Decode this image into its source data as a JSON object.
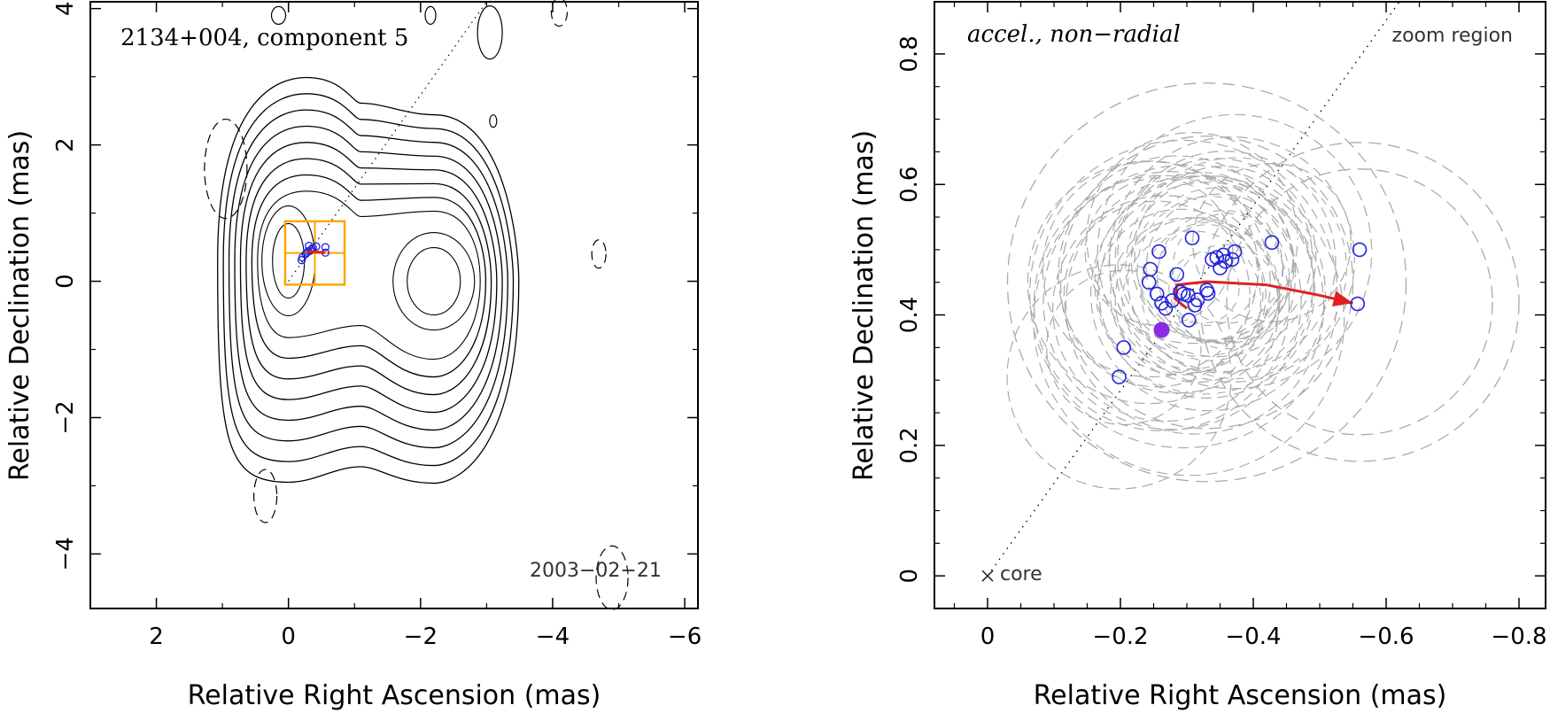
{
  "chart_data": [
    {
      "type": "scatter",
      "name": "left-panel",
      "title": "2134+004, component 5",
      "date_label": "2003−02−21",
      "xlabel": "Relative Right Ascension (mas)",
      "ylabel": "Relative Declination (mas)",
      "xlim": [
        3,
        -6.2
      ],
      "ylim": [
        -4.8,
        4.1
      ],
      "xticks": [
        2,
        0,
        -2,
        -4,
        -6
      ],
      "xtick_labels": [
        "2",
        "0",
        "−2",
        "−4",
        "−6"
      ],
      "yticks": [
        -4,
        -2,
        0,
        2,
        4
      ],
      "ytick_labels": [
        "−4",
        "−2",
        "0",
        "2",
        "4"
      ],
      "jet_direction_line": [
        [
          0,
          0
        ],
        [
          -3,
          4.1
        ]
      ],
      "contour_levels": 10,
      "contours": {
        "core": {
          "cx": 0,
          "cy": 0.3,
          "rx": 0.35,
          "ry": 0.75
        },
        "lobe": {
          "cx": -2.2,
          "cy": 0,
          "rx": 0.55,
          "ry": 0.75
        }
      },
      "zoom_box": {
        "x0": 0.05,
        "x1": -0.85,
        "y0": -0.05,
        "y1": 0.88
      },
      "component_points": [
        [
          -0.2,
          0.31
        ],
        [
          -0.21,
          0.35
        ],
        [
          -0.26,
          0.4
        ],
        [
          -0.28,
          0.42
        ],
        [
          -0.3,
          0.44
        ],
        [
          -0.33,
          0.45
        ],
        [
          -0.35,
          0.47
        ],
        [
          -0.37,
          0.49
        ],
        [
          -0.42,
          0.51
        ],
        [
          -0.56,
          0.5
        ],
        [
          -0.56,
          0.42
        ],
        [
          -0.31,
          0.52
        ]
      ],
      "trajectory": {
        "from": [
          -0.28,
          0.44
        ],
        "to": [
          -0.55,
          0.42
        ]
      }
    },
    {
      "type": "scatter",
      "name": "right-panel",
      "title": "accel., non−radial",
      "zoom_label": "zoom region",
      "core_label": "core",
      "xlabel": "Relative Right Ascension (mas)",
      "ylabel": "Relative Declination (mas)",
      "xlim": [
        0.08,
        -0.84
      ],
      "ylim": [
        -0.05,
        0.88
      ],
      "xticks": [
        0,
        -0.2,
        -0.4,
        -0.6,
        -0.8
      ],
      "xtick_labels": [
        "0",
        "−0.2",
        "−0.4",
        "−0.6",
        "−0.8"
      ],
      "yticks": [
        0,
        0.2,
        0.4,
        0.6,
        0.8
      ],
      "ytick_labels": [
        "0",
        "0.2",
        "0.4",
        "0.6",
        "0.8"
      ],
      "series": [
        {
          "name": "component positions",
          "marker": "open-circle",
          "color": "#2222dd",
          "points": [
            [
              -0.198,
              0.305
            ],
            [
              -0.205,
              0.35
            ],
            [
              -0.245,
              0.47
            ],
            [
              -0.258,
              0.497
            ],
            [
              -0.243,
              0.45
            ],
            [
              -0.255,
              0.432
            ],
            [
              -0.262,
              0.418
            ],
            [
              -0.268,
              0.41
            ],
            [
              -0.278,
              0.422
            ],
            [
              -0.285,
              0.462
            ],
            [
              -0.29,
              0.435
            ],
            [
              -0.295,
              0.432
            ],
            [
              -0.302,
              0.43
            ],
            [
              -0.303,
              0.392
            ],
            [
              -0.308,
              0.518
            ],
            [
              -0.312,
              0.415
            ],
            [
              -0.316,
              0.423
            ],
            [
              -0.33,
              0.438
            ],
            [
              -0.332,
              0.433
            ],
            [
              -0.338,
              0.485
            ],
            [
              -0.345,
              0.488
            ],
            [
              -0.35,
              0.472
            ],
            [
              -0.355,
              0.492
            ],
            [
              -0.358,
              0.482
            ],
            [
              -0.368,
              0.485
            ],
            [
              -0.372,
              0.497
            ],
            [
              -0.428,
              0.511
            ],
            [
              -0.56,
              0.5
            ],
            [
              -0.557,
              0.417
            ]
          ]
        },
        {
          "name": "reference epoch",
          "marker": "filled-circle",
          "color": "#8a2be2",
          "points": [
            [
              -0.262,
              0.377
            ]
          ]
        }
      ],
      "uncertainty_circles": {
        "color": "#aaaaaa",
        "examples": [
          {
            "cx": -0.33,
            "cy": 0.45,
            "r": 0.22
          },
          {
            "cx": -0.33,
            "cy": 0.45,
            "r": 0.3
          },
          {
            "cx": -0.56,
            "cy": 0.42,
            "r": 0.2
          },
          {
            "cx": -0.56,
            "cy": 0.42,
            "r": 0.24
          }
        ]
      },
      "trajectory": {
        "color": "#e02020",
        "path": [
          [
            -0.3,
            0.41
          ],
          [
            -0.282,
            0.425
          ],
          [
            -0.285,
            0.446
          ],
          [
            -0.33,
            0.451
          ],
          [
            -0.42,
            0.446
          ],
          [
            -0.5,
            0.43
          ],
          [
            -0.55,
            0.418
          ]
        ]
      },
      "jet_direction_line": [
        [
          0,
          0
        ],
        [
          -0.62,
          0.88
        ]
      ]
    }
  ],
  "colors": {
    "contour": "#000000",
    "zoom_box": "#ffa500",
    "circle_marker": "#2222dd",
    "filled_marker": "#8a2be2",
    "trajectory": "#e02020",
    "uncertainty": "#aaaaaa"
  }
}
